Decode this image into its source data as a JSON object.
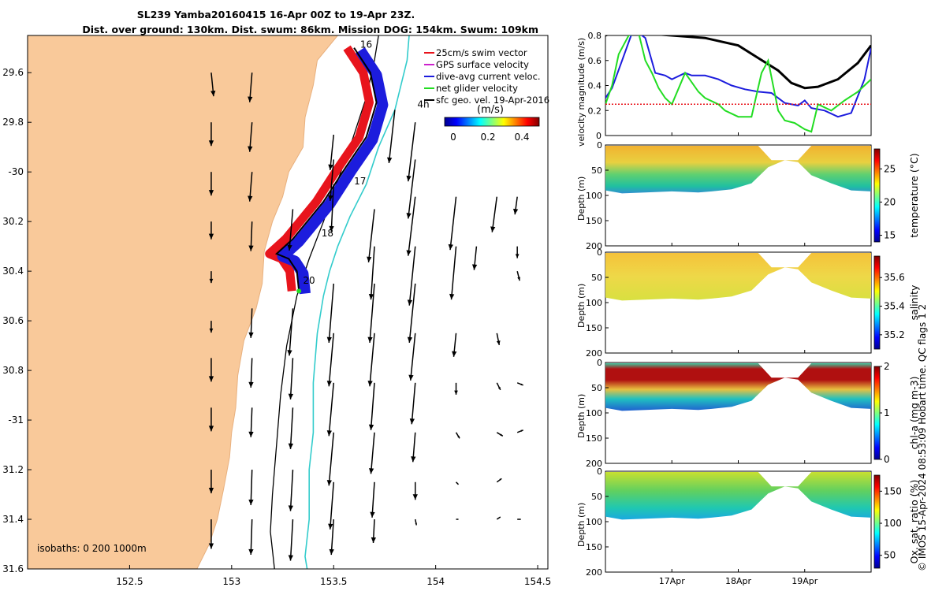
{
  "title": {
    "line1": "SL239 Yamba20160415 16-Apr 00Z to 19-Apr 23Z.",
    "line2": "Dist. over ground: 130km. Dist. swum: 86km. Mission DOG: 154km. Swum: 109km"
  },
  "copyright": "© IMOS 15-Apr-2024 08:53:09 Hobart time. QC flags 1  2",
  "colors": {
    "land": "#f9c99a",
    "coast": "#e8b07e",
    "swim": "#e8141c",
    "gps": "#cc22cc",
    "dive": "#1c1cdd",
    "net": "#22dd22",
    "sfc": "#000000",
    "isobath200": "#000000",
    "isobath1000": "#33cccc"
  },
  "chart_data": [
    {
      "type": "map",
      "name": "glider-track-map",
      "xlim": [
        152.0,
        154.55
      ],
      "ylim": [
        -31.6,
        -29.45
      ],
      "x_ticks": [
        152.5,
        153,
        153.5,
        154,
        154.5
      ],
      "x_tick_labels": [
        "152.5",
        "153",
        "153.5",
        "154",
        "154.5"
      ],
      "y_ticks": [
        -29.6,
        -29.8,
        -30,
        -30.2,
        -30.4,
        -30.6,
        -30.8,
        -31,
        -31.2,
        -31.4,
        -31.6
      ],
      "y_tick_labels": [
        "29.6",
        "29.8",
        "-30",
        "30.2",
        "30.4",
        "30.6",
        "30.8",
        "-31",
        "31.2",
        "31.4",
        "31.6"
      ],
      "legend": [
        "25cm/s swim vector",
        "GPS surface velocity",
        "dive-avg current veloc.",
        "net glider velocity",
        "sfc geo. vel. 19-Apr-2016"
      ],
      "colorbar": {
        "label": "(m/s)",
        "ticks": [
          "0",
          "0.2",
          "0.4"
        ],
        "range": [
          -0.05,
          0.5
        ]
      },
      "isobaths_label": "isobaths: 0   200  1000m",
      "day_labels": [
        {
          "text": "16",
          "lon": 153.63,
          "lat": -29.5
        },
        {
          "text": "17",
          "lon": 153.6,
          "lat": -30.05
        },
        {
          "text": "18",
          "lon": 153.44,
          "lat": -30.26
        },
        {
          "text": "20",
          "lon": 153.35,
          "lat": -30.45
        },
        {
          "text": "4h",
          "lon": 153.91,
          "lat": -29.74
        }
      ],
      "coastline": [
        [
          153.52,
          -29.45
        ],
        [
          153.42,
          -29.55
        ],
        [
          153.4,
          -29.65
        ],
        [
          153.36,
          -29.78
        ],
        [
          153.35,
          -29.9
        ],
        [
          153.28,
          -30.0
        ],
        [
          153.25,
          -30.1
        ],
        [
          153.2,
          -30.2
        ],
        [
          153.16,
          -30.32
        ],
        [
          153.15,
          -30.45
        ],
        [
          153.12,
          -30.55
        ],
        [
          153.06,
          -30.68
        ],
        [
          153.03,
          -30.82
        ],
        [
          153.02,
          -30.95
        ],
        [
          153.0,
          -31.05
        ],
        [
          152.99,
          -31.15
        ],
        [
          152.96,
          -31.28
        ],
        [
          152.93,
          -31.4
        ],
        [
          152.89,
          -31.5
        ],
        [
          152.83,
          -31.6
        ]
      ],
      "isobath_200": [
        [
          153.72,
          -29.45
        ],
        [
          153.7,
          -29.55
        ],
        [
          153.66,
          -29.7
        ],
        [
          153.58,
          -29.9
        ],
        [
          153.5,
          -30.08
        ],
        [
          153.45,
          -30.2
        ],
        [
          153.38,
          -30.35
        ],
        [
          153.32,
          -30.5
        ],
        [
          153.27,
          -30.7
        ],
        [
          153.24,
          -30.9
        ],
        [
          153.22,
          -31.1
        ],
        [
          153.2,
          -31.3
        ],
        [
          153.19,
          -31.45
        ],
        [
          153.21,
          -31.6
        ]
      ],
      "isobath_1000": [
        [
          153.87,
          -29.45
        ],
        [
          153.86,
          -29.55
        ],
        [
          153.8,
          -29.75
        ],
        [
          153.72,
          -29.9
        ],
        [
          153.66,
          -30.05
        ],
        [
          153.58,
          -30.18
        ],
        [
          153.52,
          -30.3
        ],
        [
          153.48,
          -30.4
        ],
        [
          153.45,
          -30.5
        ],
        [
          153.42,
          -30.65
        ],
        [
          153.4,
          -30.85
        ],
        [
          153.4,
          -31.05
        ],
        [
          153.38,
          -31.2
        ],
        [
          153.38,
          -31.4
        ],
        [
          153.36,
          -31.55
        ],
        [
          153.37,
          -31.6
        ]
      ],
      "track": [
        [
          153.6,
          -29.5
        ],
        [
          153.68,
          -29.6
        ],
        [
          153.71,
          -29.72
        ],
        [
          153.66,
          -29.86
        ],
        [
          153.56,
          -29.98
        ],
        [
          153.45,
          -30.12
        ],
        [
          153.3,
          -30.27
        ],
        [
          153.22,
          -30.33
        ],
        [
          153.28,
          -30.35
        ],
        [
          153.32,
          -30.4
        ],
        [
          153.33,
          -30.48
        ]
      ],
      "current_vectors_m_s": [
        [
          152.9,
          -29.6,
          0.02,
          -0.2
        ],
        [
          153.1,
          -29.6,
          -0.02,
          -0.25
        ],
        [
          153.5,
          -29.85,
          -0.03,
          -0.3
        ],
        [
          153.5,
          -29.95,
          -0.03,
          -0.35
        ],
        [
          153.5,
          -30.05,
          -0.02,
          -0.4
        ],
        [
          153.7,
          -30.15,
          -0.05,
          -0.45
        ],
        [
          153.8,
          -29.75,
          -0.05,
          -0.45
        ],
        [
          153.9,
          -29.8,
          -0.06,
          -0.5
        ],
        [
          153.9,
          -29.95,
          -0.06,
          -0.5
        ],
        [
          153.9,
          -30.1,
          -0.06,
          -0.5
        ],
        [
          154.1,
          -30.1,
          -0.05,
          -0.45
        ],
        [
          154.3,
          -30.1,
          -0.04,
          -0.3
        ],
        [
          154.4,
          -30.1,
          -0.02,
          -0.15
        ],
        [
          152.9,
          -29.8,
          0.0,
          -0.2
        ],
        [
          153.1,
          -29.8,
          -0.02,
          -0.25
        ],
        [
          152.9,
          -30.0,
          0.0,
          -0.2
        ],
        [
          153.1,
          -30.0,
          -0.02,
          -0.25
        ],
        [
          152.9,
          -30.2,
          0.0,
          -0.15
        ],
        [
          152.9,
          -30.4,
          0.0,
          -0.1
        ],
        [
          152.9,
          -30.6,
          0.0,
          -0.1
        ],
        [
          153.1,
          -30.2,
          -0.01,
          -0.25
        ],
        [
          153.3,
          -30.15,
          -0.03,
          -0.35
        ],
        [
          153.7,
          -30.3,
          -0.03,
          -0.45
        ],
        [
          153.7,
          -30.45,
          -0.04,
          -0.5
        ],
        [
          153.9,
          -30.3,
          -0.05,
          -0.5
        ],
        [
          153.9,
          -30.45,
          -0.05,
          -0.5
        ],
        [
          154.1,
          -30.3,
          -0.04,
          -0.45
        ],
        [
          154.2,
          -30.3,
          -0.02,
          -0.2
        ],
        [
          154.4,
          -30.3,
          0.0,
          -0.1
        ],
        [
          154.4,
          -30.4,
          0.02,
          -0.08
        ],
        [
          153.5,
          -30.45,
          -0.04,
          -0.5
        ],
        [
          153.3,
          -30.55,
          -0.03,
          -0.4
        ],
        [
          153.1,
          -30.55,
          -0.01,
          -0.25
        ],
        [
          152.9,
          -30.75,
          0.0,
          -0.2
        ],
        [
          152.9,
          -30.95,
          0.0,
          -0.2
        ],
        [
          153.1,
          -30.75,
          -0.01,
          -0.25
        ],
        [
          153.1,
          -30.95,
          -0.01,
          -0.25
        ],
        [
          153.3,
          -30.75,
          -0.02,
          -0.35
        ],
        [
          153.3,
          -30.95,
          -0.02,
          -0.35
        ],
        [
          153.5,
          -30.65,
          -0.04,
          -0.45
        ],
        [
          153.5,
          -30.85,
          -0.04,
          -0.45
        ],
        [
          153.5,
          -31.05,
          -0.04,
          -0.45
        ],
        [
          153.7,
          -30.65,
          -0.04,
          -0.45
        ],
        [
          153.7,
          -30.85,
          -0.03,
          -0.4
        ],
        [
          153.7,
          -31.05,
          -0.03,
          -0.35
        ],
        [
          153.9,
          -30.65,
          -0.04,
          -0.4
        ],
        [
          153.9,
          -30.85,
          -0.03,
          -0.35
        ],
        [
          153.9,
          -31.05,
          -0.02,
          -0.25
        ],
        [
          154.1,
          -30.65,
          -0.02,
          -0.2
        ],
        [
          154.1,
          -30.85,
          0.0,
          -0.1
        ],
        [
          154.3,
          -30.65,
          0.02,
          -0.1
        ],
        [
          154.3,
          -30.85,
          0.03,
          -0.06
        ],
        [
          154.4,
          -30.85,
          0.05,
          -0.02
        ],
        [
          154.3,
          -31.05,
          0.05,
          -0.03
        ],
        [
          154.4,
          -31.05,
          0.05,
          0.02
        ],
        [
          154.1,
          -31.05,
          0.03,
          -0.05
        ],
        [
          152.9,
          -31.2,
          0.0,
          -0.2
        ],
        [
          152.9,
          -31.4,
          0.0,
          -0.25
        ],
        [
          153.1,
          -31.2,
          -0.01,
          -0.3
        ],
        [
          153.1,
          -31.4,
          -0.01,
          -0.3
        ],
        [
          153.3,
          -31.2,
          -0.02,
          -0.35
        ],
        [
          153.3,
          -31.4,
          -0.02,
          -0.35
        ],
        [
          153.5,
          -31.25,
          -0.03,
          -0.4
        ],
        [
          153.5,
          -31.4,
          -0.02,
          -0.3
        ],
        [
          153.7,
          -31.25,
          -0.02,
          -0.3
        ],
        [
          153.7,
          -31.4,
          -0.01,
          -0.2
        ],
        [
          153.9,
          -31.25,
          0.0,
          -0.15
        ],
        [
          153.9,
          -31.4,
          0.01,
          -0.05
        ],
        [
          154.1,
          -31.25,
          0.02,
          -0.02
        ],
        [
          154.1,
          -31.4,
          0.02,
          0.0
        ],
        [
          154.3,
          -31.25,
          0.04,
          0.03
        ],
        [
          154.3,
          -31.4,
          0.03,
          0.02
        ],
        [
          154.4,
          -31.4,
          0.03,
          0.0
        ]
      ]
    },
    {
      "type": "line",
      "name": "velocity-magnitude-panel",
      "ylabel": "velocity magnitude (m/s)",
      "ylim": [
        0,
        0.8
      ],
      "y_ticks": [
        "0",
        "0.2",
        "0.4",
        "0.6",
        "0.8"
      ],
      "xlim_day": [
        16.0,
        20.0
      ],
      "x_ticks": [
        {
          "day": 17,
          "label": "17Apr"
        },
        {
          "day": 18,
          "label": "18Apr"
        },
        {
          "day": 19,
          "label": "19Apr"
        }
      ],
      "series": [
        {
          "name": "sfc geo. vel.",
          "color": "#000000",
          "x": [
            16.0,
            16.1,
            16.2,
            16.3,
            16.5,
            17.0,
            17.5,
            18.0,
            18.3,
            18.6,
            18.8,
            19.0,
            19.2,
            19.5,
            19.8,
            20.0
          ],
          "y": [
            0.8,
            0.82,
            0.82,
            0.82,
            0.82,
            0.8,
            0.78,
            0.72,
            0.62,
            0.52,
            0.42,
            0.38,
            0.39,
            0.45,
            0.58,
            0.72
          ]
        },
        {
          "name": "dive-avg current veloc.",
          "color": "#1c1cdd",
          "x": [
            16.0,
            16.1,
            16.25,
            16.4,
            16.5,
            16.6,
            16.75,
            16.9,
            17.0,
            17.2,
            17.3,
            17.5,
            17.7,
            17.9,
            18.1,
            18.3,
            18.5,
            18.7,
            18.9,
            19.0,
            19.1,
            19.3,
            19.5,
            19.7,
            19.9,
            20.0
          ],
          "y": [
            0.3,
            0.38,
            0.6,
            0.82,
            0.82,
            0.78,
            0.5,
            0.48,
            0.45,
            0.5,
            0.48,
            0.48,
            0.45,
            0.4,
            0.37,
            0.35,
            0.34,
            0.26,
            0.24,
            0.28,
            0.22,
            0.2,
            0.15,
            0.18,
            0.45,
            0.7
          ]
        },
        {
          "name": "net glider velocity",
          "color": "#22dd22",
          "x": [
            16.0,
            16.1,
            16.2,
            16.35,
            16.5,
            16.6,
            16.7,
            16.8,
            16.9,
            17.0,
            17.2,
            17.4,
            17.5,
            17.7,
            17.8,
            18.0,
            18.2,
            18.35,
            18.45,
            18.6,
            18.7,
            18.85,
            19.0,
            19.1,
            19.2,
            19.4,
            19.6,
            19.8,
            20.0
          ],
          "y": [
            0.25,
            0.4,
            0.65,
            0.8,
            0.82,
            0.6,
            0.5,
            0.38,
            0.3,
            0.25,
            0.5,
            0.35,
            0.3,
            0.25,
            0.2,
            0.15,
            0.15,
            0.5,
            0.6,
            0.2,
            0.12,
            0.1,
            0.05,
            0.03,
            0.25,
            0.2,
            0.28,
            0.35,
            0.45
          ]
        },
        {
          "name": "25cm/s reference",
          "color": "#e8141c",
          "style": "dotted",
          "x": [
            16.0,
            20.0
          ],
          "y": [
            0.25,
            0.25
          ]
        }
      ]
    },
    {
      "type": "heatmap",
      "name": "temperature-section",
      "ylabel": "Depth (m)",
      "ylim": [
        200,
        0
      ],
      "y_ticks": [
        "0",
        "50",
        "100",
        "150",
        "200"
      ],
      "colorbar_label": "temperature (°C)",
      "colorbar_range": [
        14,
        28
      ],
      "colorbar_ticks": [
        "15",
        "20",
        "25"
      ]
    },
    {
      "type": "heatmap",
      "name": "salinity-section",
      "ylabel": "Depth (m)",
      "ylim": [
        200,
        0
      ],
      "y_ticks": [
        "0",
        "50",
        "100",
        "150",
        "200"
      ],
      "colorbar_label": "salinity",
      "colorbar_range": [
        35.1,
        35.75
      ],
      "colorbar_ticks": [
        "35.2",
        "35.4",
        "35.6"
      ]
    },
    {
      "type": "heatmap",
      "name": "chl-a-section",
      "ylabel": "Depth (m)",
      "ylim": [
        200,
        0
      ],
      "y_ticks": [
        "0",
        "50",
        "100",
        "150",
        "200"
      ],
      "colorbar_label": "chl-a (mg m-3)",
      "colorbar_range": [
        0,
        2
      ],
      "colorbar_ticks": [
        "0",
        "1",
        "2"
      ]
    },
    {
      "type": "heatmap",
      "name": "oxygen-section",
      "ylabel": "Depth (m)",
      "ylim": [
        200,
        0
      ],
      "y_ticks": [
        "0",
        "50",
        "100",
        "150",
        "200"
      ],
      "colorbar_label": "Ox. sat. ratio (%)",
      "colorbar_range": [
        30,
        175
      ],
      "colorbar_ticks": [
        "50",
        "100",
        "150"
      ]
    }
  ]
}
